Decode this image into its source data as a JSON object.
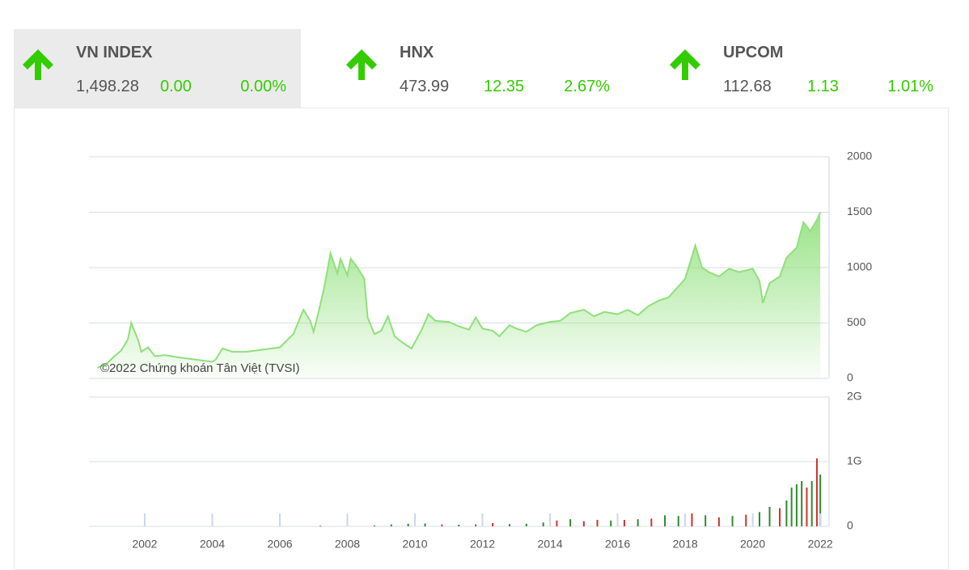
{
  "indices": [
    {
      "name": "VN INDEX",
      "value": "1,498.28",
      "change": "0.00",
      "percent": "0.00%"
    },
    {
      "name": "HNX",
      "value": "473.99",
      "change": "12.35",
      "percent": "2.67%"
    },
    {
      "name": "UPCOM",
      "value": "112.68",
      "change": "1.13",
      "percent": "1.01%"
    }
  ],
  "chart_data": [
    {
      "type": "area",
      "annotation": "©2022 Chứng khoán Tân Việt (TVSI)",
      "color": "#8fe07a",
      "x": [
        2000.6,
        2000.9,
        2001.1,
        2001.3,
        2001.5,
        2001.6,
        2001.8,
        2001.9,
        2002.1,
        2002.3,
        2002.6,
        2003.0,
        2003.5,
        2004.0,
        2004.1,
        2004.3,
        2004.6,
        2005.0,
        2005.5,
        2006.0,
        2006.4,
        2006.7,
        2006.9,
        2007.0,
        2007.1,
        2007.3,
        2007.5,
        2007.7,
        2007.8,
        2008.0,
        2008.1,
        2008.3,
        2008.5,
        2008.6,
        2008.8,
        2009.0,
        2009.2,
        2009.4,
        2009.6,
        2009.9,
        2010.2,
        2010.4,
        2010.6,
        2011.0,
        2011.3,
        2011.6,
        2011.8,
        2012.0,
        2012.3,
        2012.5,
        2012.8,
        2013.0,
        2013.3,
        2013.6,
        2014.0,
        2014.3,
        2014.6,
        2015.0,
        2015.3,
        2015.6,
        2016.0,
        2016.3,
        2016.6,
        2016.9,
        2017.2,
        2017.5,
        2017.8,
        2018.0,
        2018.2,
        2018.3,
        2018.5,
        2018.7,
        2019.0,
        2019.3,
        2019.6,
        2020.0,
        2020.2,
        2020.3,
        2020.5,
        2020.8,
        2021.0,
        2021.3,
        2021.5,
        2021.7,
        2021.9,
        2022.0
      ],
      "values": [
        95,
        140,
        200,
        250,
        350,
        500,
        350,
        240,
        280,
        200,
        210,
        190,
        170,
        150,
        170,
        270,
        240,
        240,
        260,
        280,
        400,
        620,
        520,
        420,
        540,
        800,
        1130,
        950,
        1080,
        930,
        1080,
        1000,
        900,
        550,
        400,
        430,
        560,
        380,
        330,
        270,
        440,
        580,
        520,
        510,
        470,
        440,
        550,
        450,
        430,
        380,
        480,
        450,
        420,
        480,
        510,
        520,
        590,
        620,
        560,
        600,
        580,
        620,
        570,
        650,
        700,
        730,
        830,
        900,
        1100,
        1200,
        1000,
        960,
        920,
        990,
        960,
        990,
        880,
        680,
        860,
        920,
        1090,
        1180,
        1410,
        1330,
        1430,
        1500
      ],
      "xlim": [
        2000.35,
        2022.26
      ],
      "ylim": [
        0,
        2000
      ],
      "yticks": [
        0,
        500,
        1000,
        1500,
        2000
      ]
    },
    {
      "type": "bar",
      "x": [
        2007.2,
        2008.0,
        2008.8,
        2009.3,
        2009.8,
        2010.3,
        2010.8,
        2011.3,
        2011.8,
        2012.3,
        2012.8,
        2013.3,
        2013.8,
        2014.2,
        2014.6,
        2015.0,
        2015.4,
        2015.8,
        2016.2,
        2016.6,
        2017.0,
        2017.4,
        2017.8,
        2018.2,
        2018.6,
        2019.0,
        2019.4,
        2019.8,
        2020.2,
        2020.5,
        2020.8,
        2021.0,
        2021.15,
        2021.3,
        2021.45,
        2021.6,
        2021.75,
        2021.9,
        2022.0
      ],
      "values": [
        10000000,
        12000000,
        15000000,
        30000000,
        40000000,
        45000000,
        30000000,
        25000000,
        30000000,
        50000000,
        35000000,
        40000000,
        60000000,
        90000000,
        110000000,
        80000000,
        100000000,
        90000000,
        100000000,
        110000000,
        120000000,
        170000000,
        160000000,
        200000000,
        170000000,
        140000000,
        160000000,
        180000000,
        220000000,
        300000000,
        280000000,
        400000000,
        600000000,
        650000000,
        700000000,
        600000000,
        700000000,
        1050000000,
        800000000
      ],
      "colors": [
        "#d0312d",
        "#d0312d",
        "#2e8b2e",
        "#2e8b2e",
        "#2e8b2e",
        "#2e8b2e",
        "#d0312d",
        "#2e8b2e",
        "#d0312d",
        "#d0312d",
        "#2e8b2e",
        "#2e8b2e",
        "#2e8b2e",
        "#d0312d",
        "#2e8b2e",
        "#d0312d",
        "#d0312d",
        "#2e8b2e",
        "#d0312d",
        "#2e8b2e",
        "#d0312d",
        "#2e8b2e",
        "#2e8b2e",
        "#d0312d",
        "#2e8b2e",
        "#d0312d",
        "#2e8b2e",
        "#d0312d",
        "#2e8b2e",
        "#2e8b2e",
        "#d0312d",
        "#2e8b2e",
        "#2e8b2e",
        "#2e8b2e",
        "#2e8b2e",
        "#d0312d",
        "#2e8b2e",
        "#d0312d",
        "#2e8b2e"
      ],
      "xlim": [
        2000.35,
        2022.26
      ],
      "ylim": [
        0,
        2000000000
      ],
      "yticks": [
        0,
        {
          "value": 1000000000,
          "label": "1G"
        },
        {
          "value": 2000000000,
          "label": "2G"
        }
      ],
      "xticks": [
        2002,
        2004,
        2006,
        2008,
        2010,
        2012,
        2014,
        2016,
        2018,
        2020,
        2022
      ]
    }
  ]
}
